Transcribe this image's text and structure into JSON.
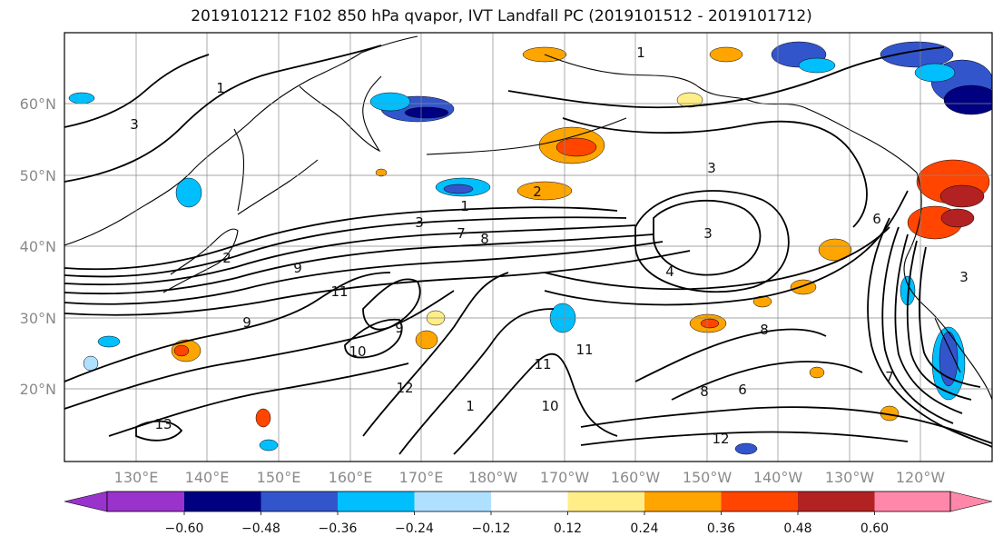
{
  "title": "2019101212 F102 850 hPa qvapor, IVT Landfall PC (2019101512 - 2019101712)",
  "map": {
    "lat_labels": [
      "60°N",
      "50°N",
      "40°N",
      "30°N",
      "20°N"
    ],
    "lon_labels": [
      "130°E",
      "140°E",
      "150°E",
      "160°E",
      "170°E",
      "180°W",
      "170°W",
      "160°W",
      "150°W",
      "140°W",
      "130°W",
      "120°W"
    ],
    "contour_labels": [
      "1",
      "1",
      "1",
      "2",
      "2",
      "3",
      "3",
      "3",
      "3",
      "4",
      "7",
      "8",
      "6",
      "8",
      "9",
      "9",
      "9",
      "10",
      "11",
      "11",
      "11",
      "10",
      "12",
      "12",
      "13",
      "1",
      "7",
      "8",
      "6",
      "3"
    ]
  },
  "colorbar": {
    "ticks": [
      "−0.60",
      "−0.48",
      "−0.36",
      "−0.24",
      "−0.12",
      "0.12",
      "0.24",
      "0.36",
      "0.48",
      "0.60"
    ],
    "under_color": "#9933cc",
    "over_color": "#ff88aa",
    "colors": [
      "#000080",
      "#3355cc",
      "#00bfff",
      "#b0e0ff",
      "#ffffff",
      "#ffee88",
      "#ffa500",
      "#ff4500",
      "#b22222"
    ]
  },
  "colors": {
    "pos_weak": "#ffee88",
    "pos_mid": "#ffa500",
    "pos_strong": "#ff4500",
    "pos_max": "#b22222",
    "neg_weak": "#b0e0ff",
    "neg_mid": "#00bfff",
    "neg_strong": "#3355cc",
    "neg_max": "#000080"
  }
}
